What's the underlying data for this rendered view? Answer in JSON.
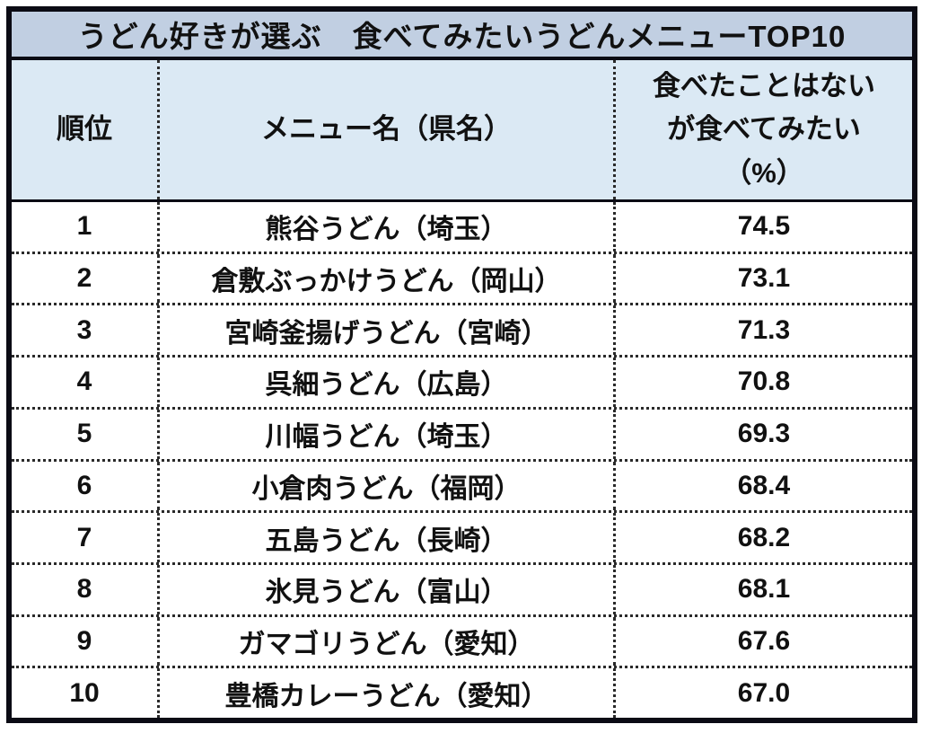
{
  "title": "うどん好きが選ぶ　食べてみたいうどんメニューTOP10",
  "colors": {
    "title_bg": "#c1cfe2",
    "header_bg": "#dbe9f4",
    "border": "#0b0b14",
    "text": "#111111"
  },
  "table": {
    "headers": {
      "rank": "順位",
      "menu": "メニュー名（県名）",
      "pct_line1": "食べたことはない",
      "pct_line2": "が食べてみたい",
      "pct_line3": "（%）"
    },
    "rows": [
      {
        "rank": "1",
        "menu": "熊谷うどん（埼玉）",
        "pct": "74.5"
      },
      {
        "rank": "2",
        "menu": "倉敷ぶっかけうどん（岡山）",
        "pct": "73.1"
      },
      {
        "rank": "3",
        "menu": "宮崎釜揚げうどん（宮崎）",
        "pct": "71.3"
      },
      {
        "rank": "4",
        "menu": "呉細うどん（広島）",
        "pct": "70.8"
      },
      {
        "rank": "5",
        "menu": "川幅うどん（埼玉）",
        "pct": "69.3"
      },
      {
        "rank": "6",
        "menu": "小倉肉うどん（福岡）",
        "pct": "68.4"
      },
      {
        "rank": "7",
        "menu": "五島うどん（長崎）",
        "pct": "68.2"
      },
      {
        "rank": "8",
        "menu": "氷見うどん（富山）",
        "pct": "68.1"
      },
      {
        "rank": "9",
        "menu": "ガマゴリうどん（愛知）",
        "pct": "67.6"
      },
      {
        "rank": "10",
        "menu": "豊橋カレーうどん（愛知）",
        "pct": "67.0"
      }
    ]
  },
  "chart_data": {
    "type": "table",
    "title": "うどん好きが選ぶ　食べてみたいうどんメニューTOP10",
    "columns": [
      "順位",
      "メニュー名（県名）",
      "食べたことはないが食べてみたい（%）"
    ],
    "rows": [
      [
        1,
        "熊谷うどん（埼玉）",
        74.5
      ],
      [
        2,
        "倉敷ぶっかけうどん（岡山）",
        73.1
      ],
      [
        3,
        "宮崎釜揚げうどん（宮崎）",
        71.3
      ],
      [
        4,
        "呉細うどん（広島）",
        70.8
      ],
      [
        5,
        "川幅うどん（埼玉）",
        69.3
      ],
      [
        6,
        "小倉肉うどん（福岡）",
        68.4
      ],
      [
        7,
        "五島うどん（長崎）",
        68.2
      ],
      [
        8,
        "氷見うどん（富山）",
        68.1
      ],
      [
        9,
        "ガマゴリうどん（愛知）",
        67.6
      ],
      [
        10,
        "豊橋カレーうどん（愛知）",
        67.0
      ]
    ]
  }
}
